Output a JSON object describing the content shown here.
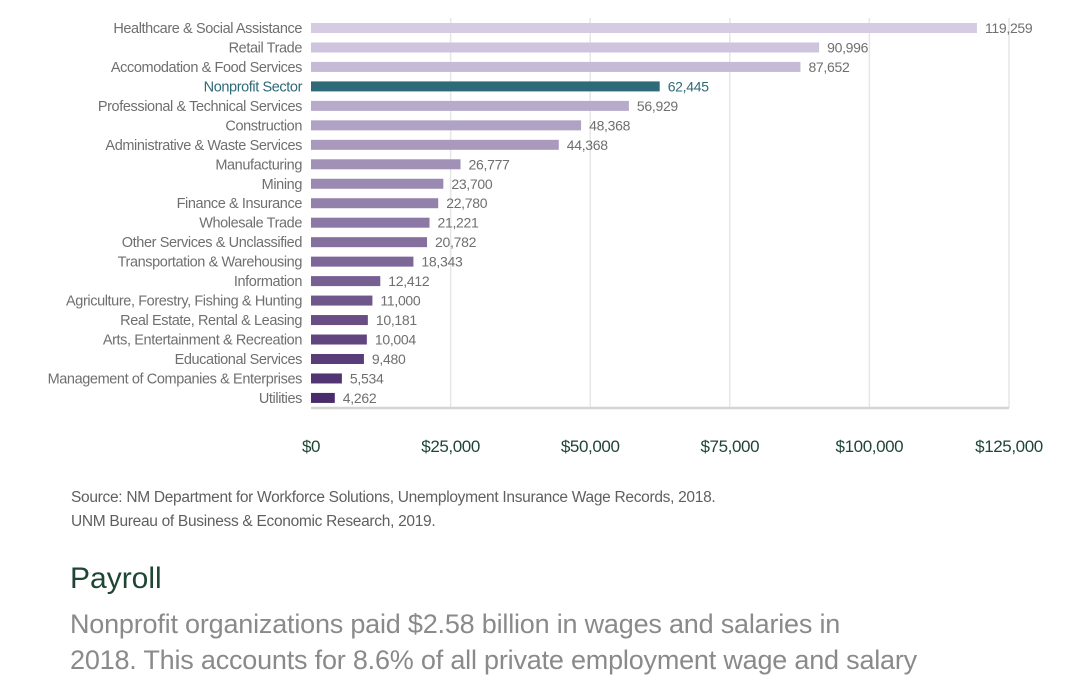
{
  "chart_data": {
    "type": "bar",
    "orientation": "horizontal",
    "categories": [
      "Healthcare & Social Assistance",
      "Retail Trade",
      "Accomodation & Food Services",
      "Nonprofit Sector",
      "Professional & Technical Services",
      "Construction",
      "Administrative & Waste Services",
      "Manufacturing",
      "Mining",
      "Finance & Insurance",
      "Wholesale Trade",
      "Other Services & Unclassified",
      "Transportation & Warehousing",
      "Information",
      "Agriculture, Forestry, Fishing & Hunting",
      "Real Estate, Rental & Leasing",
      "Arts, Entertainment & Recreation",
      "Educational Services",
      "Management of Companies & Enterprises",
      "Utilities"
    ],
    "values": [
      119259,
      90996,
      87652,
      62445,
      56929,
      48368,
      44368,
      26777,
      23700,
      22780,
      21221,
      20782,
      18343,
      12412,
      11000,
      10181,
      10004,
      9480,
      5534,
      4262
    ],
    "value_labels": [
      "119,259",
      "90,996",
      "87,652",
      "62,445",
      "56,929",
      "48,368",
      "44,368",
      "26,777",
      "23,700",
      "22,780",
      "21,221",
      "20,782",
      "18,343",
      "12,412",
      "11,000",
      "10,181",
      "10,004",
      "9,480",
      "5,534",
      "4,262"
    ],
    "highlight": "Nonprofit Sector",
    "xlim": [
      0,
      125000
    ],
    "xticks": [
      "$0",
      "$25,000",
      "$50,000",
      "$75,000",
      "$100,000",
      "$125,000"
    ],
    "grid": true,
    "colors": {
      "highlight": "#2e6a78",
      "gradient_start": "#d5cce3",
      "gradient_end": "#4a2c6c",
      "tick_label": "#1f4634"
    }
  },
  "source": {
    "line1": "Source: NM Department for Workforce Solutions, Unemployment Insurance Wage Records, 2018.",
    "line2": "UNM Bureau of Business & Economic Research, 2019."
  },
  "section": {
    "heading": "Payroll",
    "line1": "Nonprofit organizations paid $2.58 billion in wages and salaries in",
    "line2": "2018. This accounts for 8.6% of all private employment wage and salary"
  }
}
